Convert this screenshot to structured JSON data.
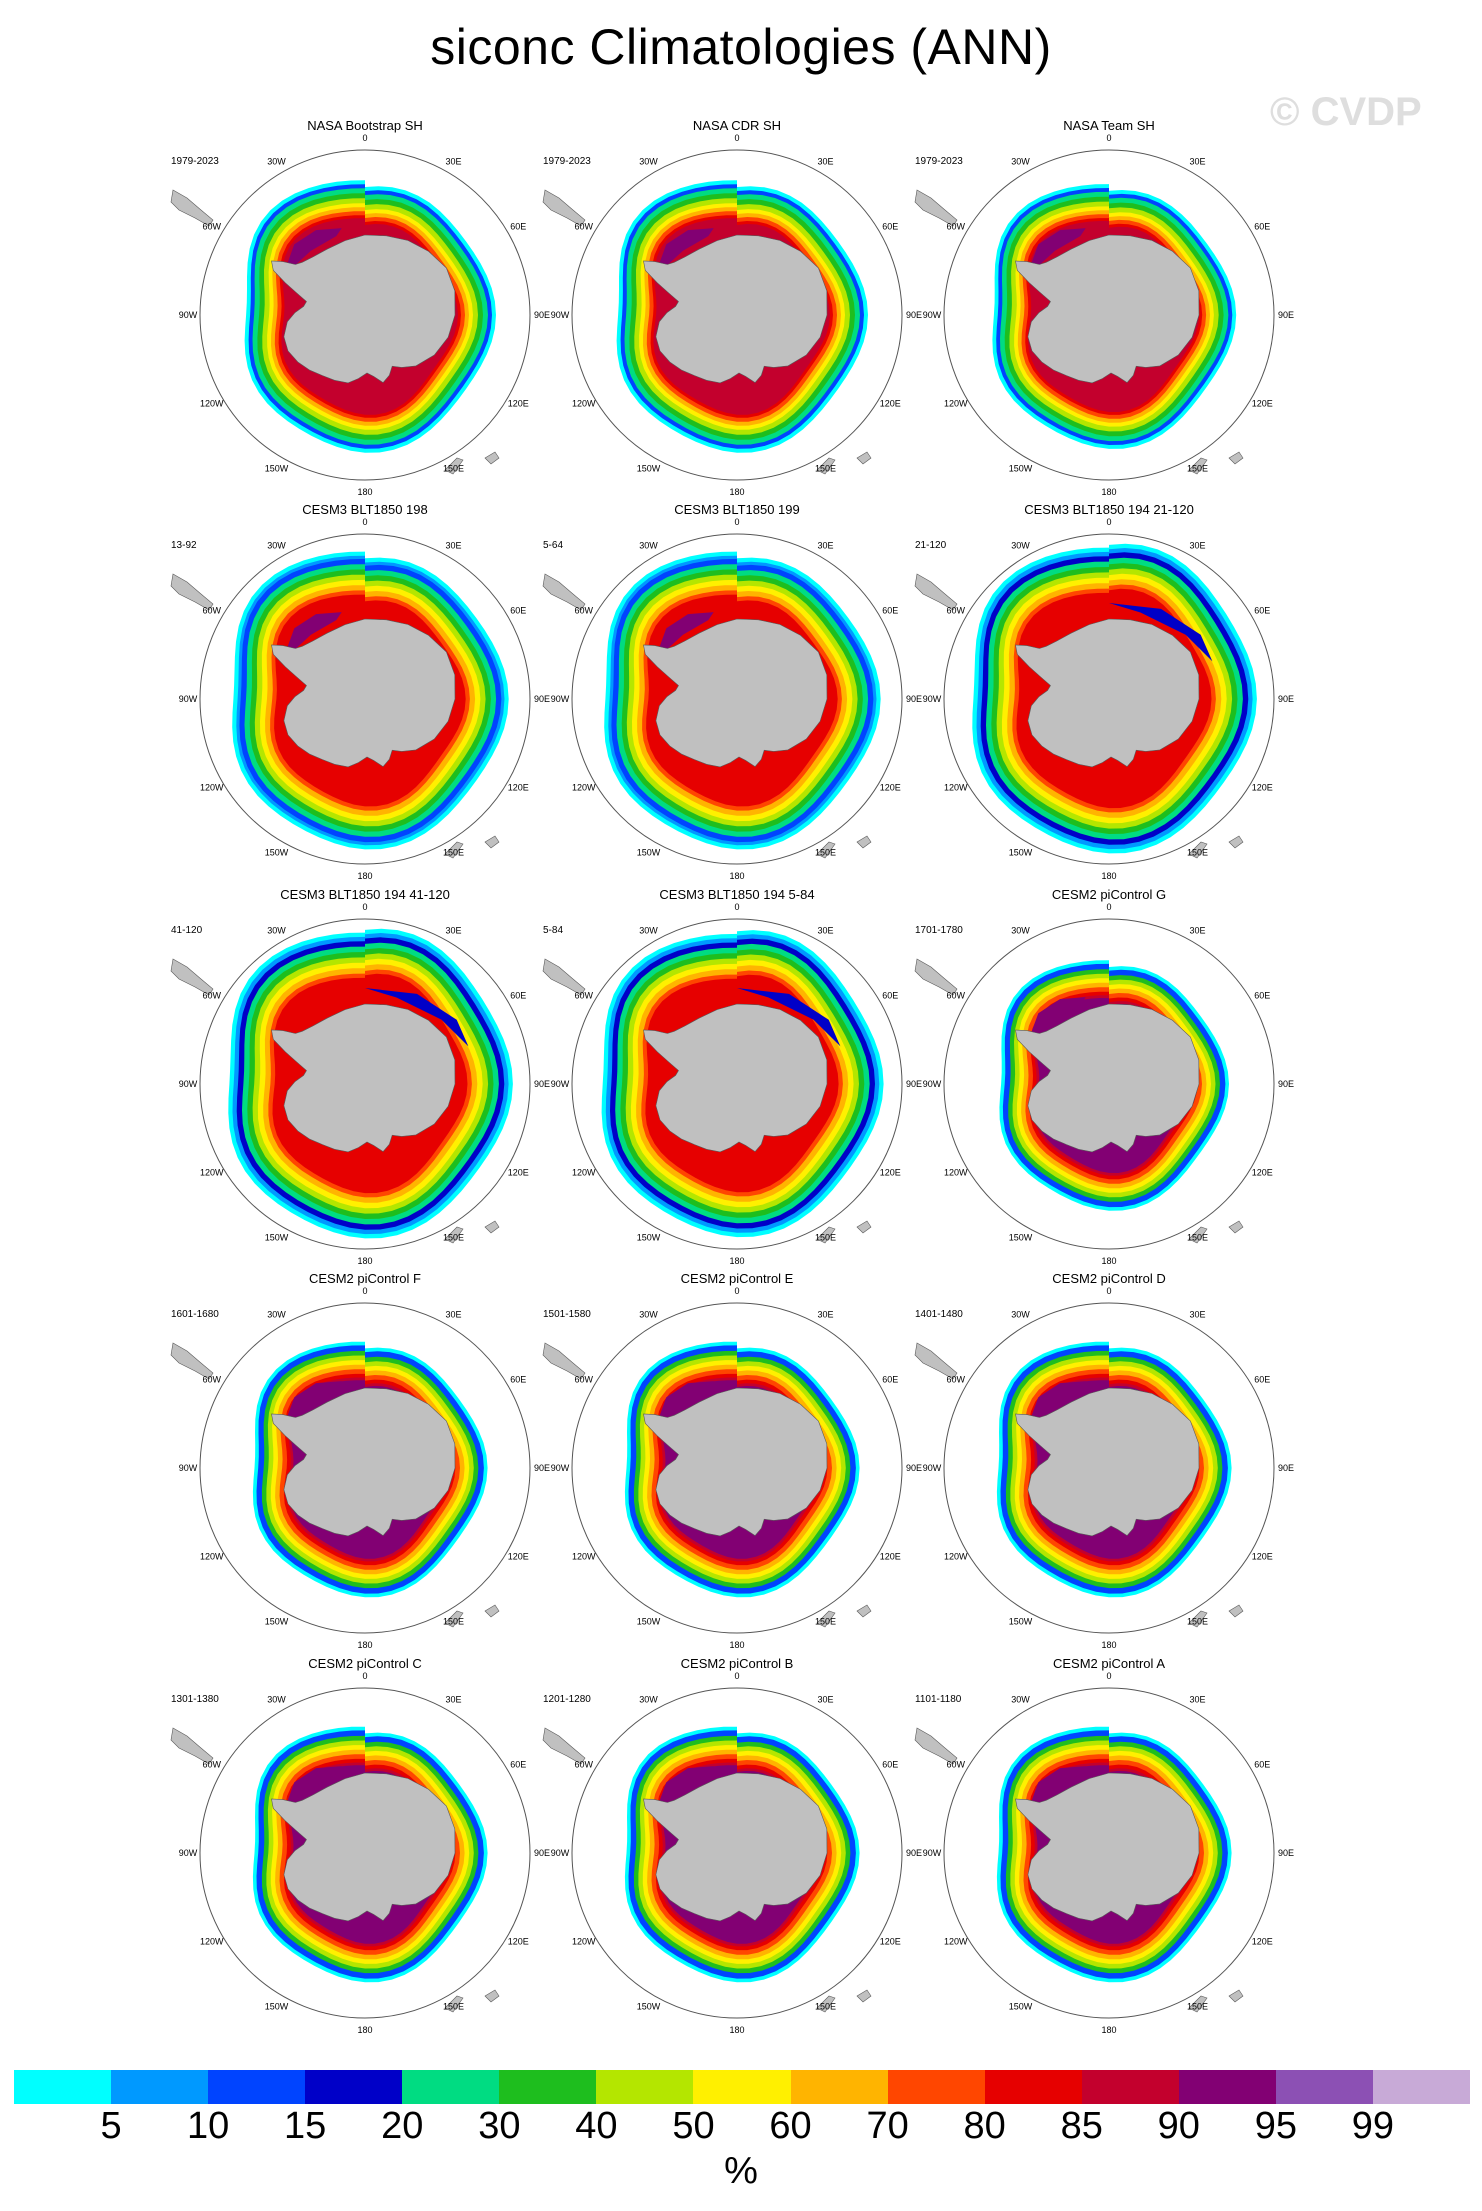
{
  "title": "siconc Climatologies (ANN)",
  "watermark": "© CVDP",
  "labels": {
    "meridians": [
      "0",
      "30E",
      "60E",
      "90E",
      "120E",
      "150E",
      "180",
      "150W",
      "120W",
      "90W",
      "60W",
      "30W"
    ]
  },
  "colors": {
    "land": "#c0c0c0",
    "coast": "#5a5a5a",
    "circle": "#555555"
  },
  "panels": [
    {
      "title": "NASA Bootstrap SH",
      "period": "1979-2023",
      "style": "obs",
      "ext": 1.0
    },
    {
      "title": "NASA CDR SH",
      "period": "1979-2023",
      "style": "obs",
      "ext": 1.0
    },
    {
      "title": "NASA Team SH",
      "period": "1979-2023",
      "style": "obs",
      "ext": 0.97
    },
    {
      "title": "CESM3 BLT1850 198",
      "period": "13-92",
      "style": "cesm3",
      "ext": 1.05
    },
    {
      "title": "CESM3 BLT1850 199",
      "period": "5-64",
      "style": "cesm3",
      "ext": 1.05
    },
    {
      "title": "CESM3 BLT1850 194 21-120",
      "period": "21-120",
      "style": "cesm3green",
      "ext": 1.08
    },
    {
      "title": "CESM3 BLT1850 194 41-120",
      "period": "41-120",
      "style": "cesm3green",
      "ext": 1.08
    },
    {
      "title": "CESM3 BLT1850 194 5-84",
      "period": "5-84",
      "style": "cesm3green",
      "ext": 1.07
    },
    {
      "title": "CESM2 piControl G",
      "period": "1701-1780",
      "style": "cesm2",
      "ext": 0.9
    },
    {
      "title": "CESM2 piControl F",
      "period": "1601-1680",
      "style": "cesm2",
      "ext": 0.92
    },
    {
      "title": "CESM2 piControl E",
      "period": "1501-1580",
      "style": "cesm2",
      "ext": 0.92
    },
    {
      "title": "CESM2 piControl D",
      "period": "1401-1480",
      "style": "cesm2",
      "ext": 0.92
    },
    {
      "title": "CESM2 piControl C",
      "period": "1301-1380",
      "style": "cesm2",
      "ext": 0.92
    },
    {
      "title": "CESM2 piControl B",
      "period": "1201-1280",
      "style": "cesm2",
      "ext": 0.92
    },
    {
      "title": "CESM2 piControl A",
      "period": "1101-1180",
      "style": "cesm2",
      "ext": 0.92
    }
  ],
  "colorbar": {
    "colors": [
      "#00ffff",
      "#0099ff",
      "#0044ff",
      "#0000c8",
      "#00dc82",
      "#1ebe1e",
      "#b4e600",
      "#fff000",
      "#ffb400",
      "#ff4600",
      "#e60000",
      "#c3002d",
      "#820073",
      "#8c50b4",
      "#c8aad7"
    ],
    "labels": [
      "5",
      "10",
      "15",
      "20",
      "30",
      "40",
      "50",
      "60",
      "70",
      "80",
      "85",
      "90",
      "95",
      "99"
    ],
    "units": "%"
  }
}
